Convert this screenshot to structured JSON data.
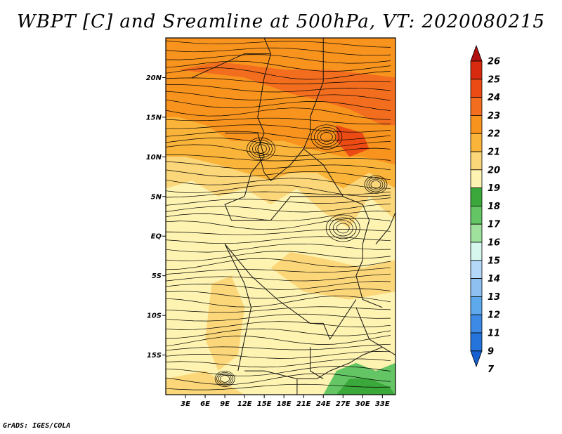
{
  "title": "WBPT [C] and Sreamline at 500hPa, VT: 2020080215",
  "credit": "GrADS: IGES/COLA",
  "map": {
    "lon_range": [
      0,
      35
    ],
    "lat_range": [
      -20,
      25
    ],
    "lat_ticks": [
      "20N",
      "15N",
      "10N",
      "5N",
      "EQ",
      "5S",
      "10S",
      "15S"
    ],
    "lat_values": [
      20,
      15,
      10,
      5,
      0,
      -5,
      -10,
      -15
    ],
    "lon_ticks": [
      "3E",
      "6E",
      "9E",
      "12E",
      "15E",
      "18E",
      "21E",
      "24E",
      "27E",
      "30E",
      "33E"
    ],
    "lon_values": [
      3,
      6,
      9,
      12,
      15,
      18,
      21,
      24,
      27,
      30,
      33
    ]
  },
  "colorbar": {
    "labels": [
      "26",
      "25",
      "24",
      "23",
      "22",
      "21",
      "20",
      "19",
      "18",
      "17",
      "16",
      "15",
      "14",
      "13",
      "12",
      "11",
      "9",
      "7"
    ],
    "colors": [
      "#b01010",
      "#d82a0e",
      "#ec4b14",
      "#f36d1e",
      "#f8931e",
      "#fbb43a",
      "#fcd77a",
      "#fef3b0",
      "#3aa83a",
      "#63c563",
      "#9ee29e",
      "#d6f7ee",
      "#b4d8f8",
      "#8ec0f2",
      "#5ea8ec",
      "#3c8ae6",
      "#2474dc",
      "#1660d2"
    ]
  }
}
